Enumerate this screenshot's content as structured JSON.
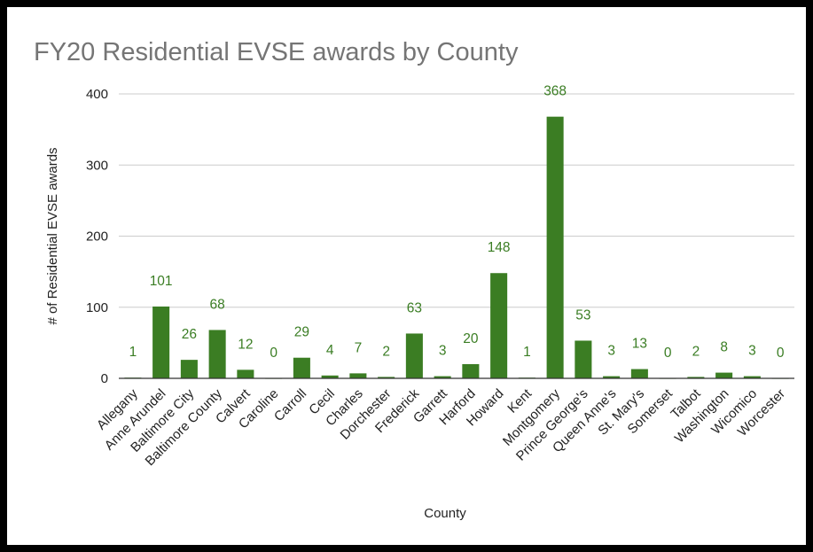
{
  "chart_data": {
    "type": "bar",
    "title": "FY20 Residential EVSE awards by County",
    "xlabel": "County",
    "ylabel": "# of Residential EVSE awards",
    "ylim": [
      0,
      400
    ],
    "yticks": [
      "0",
      "100",
      "200",
      "300",
      "400"
    ],
    "grid": true,
    "legend": "none",
    "bar_color": "#3b7d23",
    "label_color": "#3a7d23",
    "categories": [
      "Allegany",
      "Anne Arundel",
      "Baltimore City",
      "Baltimore County",
      "Calvert",
      "Caroline",
      "Carroll",
      "Cecil",
      "Charles",
      "Dorchester",
      "Frederick",
      "Garrett",
      "Harford",
      "Howard",
      "Kent",
      "Montgomery",
      "Prince George's",
      "Queen Anne's",
      "St. Mary's",
      "Somerset",
      "Talbot",
      "Washington",
      "Wicomico",
      "Worcester"
    ],
    "values": [
      1,
      101,
      26,
      68,
      12,
      0,
      29,
      4,
      7,
      2,
      63,
      3,
      20,
      148,
      1,
      368,
      53,
      3,
      13,
      0,
      2,
      8,
      3,
      0
    ]
  }
}
